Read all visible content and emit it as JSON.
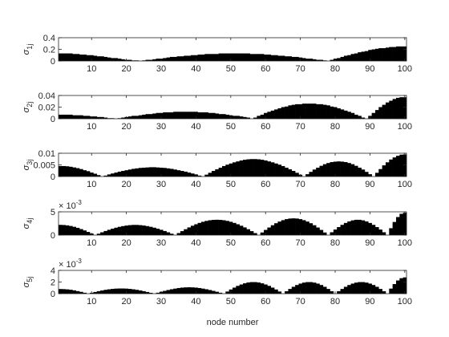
{
  "chart_data": [
    {
      "type": "bar",
      "ylabel_symbol": "σ",
      "ylabel_subscript": "1j",
      "color": "#000000",
      "grid": false,
      "xlim": [
        0.5,
        100.5
      ],
      "xticks": [
        10,
        20,
        30,
        40,
        50,
        60,
        70,
        80,
        90,
        100
      ],
      "ylim": [
        0,
        0.4
      ],
      "yticks": [
        0,
        0.2,
        0.4
      ],
      "values": [
        0.13,
        0.13,
        0.13,
        0.13,
        0.12,
        0.12,
        0.11,
        0.11,
        0.1,
        0.1,
        0.09,
        0.08,
        0.08,
        0.07,
        0.06,
        0.05,
        0.05,
        0.04,
        0.03,
        0.02,
        0.02,
        0.01,
        0.01,
        0.0,
        0.01,
        0.02,
        0.02,
        0.03,
        0.04,
        0.04,
        0.05,
        0.06,
        0.07,
        0.07,
        0.08,
        0.08,
        0.09,
        0.09,
        0.1,
        0.1,
        0.11,
        0.11,
        0.12,
        0.12,
        0.12,
        0.12,
        0.13,
        0.13,
        0.13,
        0.13,
        0.13,
        0.13,
        0.13,
        0.13,
        0.13,
        0.12,
        0.12,
        0.12,
        0.12,
        0.11,
        0.11,
        0.1,
        0.1,
        0.09,
        0.09,
        0.08,
        0.08,
        0.07,
        0.07,
        0.06,
        0.05,
        0.04,
        0.04,
        0.03,
        0.02,
        0.02,
        0.01,
        0.0,
        0.02,
        0.04,
        0.05,
        0.07,
        0.09,
        0.1,
        0.12,
        0.13,
        0.15,
        0.16,
        0.17,
        0.19,
        0.2,
        0.21,
        0.22,
        0.22,
        0.23,
        0.24,
        0.24,
        0.25,
        0.25,
        0.25
      ]
    },
    {
      "type": "bar",
      "ylabel_symbol": "σ",
      "ylabel_subscript": "2j",
      "color": "#000000",
      "grid": false,
      "xlim": [
        0.5,
        100.5
      ],
      "xticks": [
        10,
        20,
        30,
        40,
        50,
        60,
        70,
        80,
        90,
        100
      ],
      "ylim": [
        0,
        0.04
      ],
      "yticks": [
        0,
        0.02,
        0.04
      ],
      "values": [
        0.007,
        0.007,
        0.007,
        0.007,
        0.006,
        0.006,
        0.006,
        0.005,
        0.005,
        0.004,
        0.004,
        0.003,
        0.003,
        0.002,
        0.001,
        0.001,
        0.0,
        0.001,
        0.002,
        0.003,
        0.004,
        0.005,
        0.005,
        0.006,
        0.007,
        0.008,
        0.008,
        0.009,
        0.01,
        0.01,
        0.011,
        0.011,
        0.011,
        0.012,
        0.012,
        0.012,
        0.012,
        0.012,
        0.012,
        0.012,
        0.011,
        0.011,
        0.011,
        0.01,
        0.01,
        0.009,
        0.008,
        0.008,
        0.007,
        0.006,
        0.005,
        0.005,
        0.004,
        0.003,
        0.002,
        0.0,
        0.002,
        0.005,
        0.007,
        0.01,
        0.012,
        0.014,
        0.016,
        0.018,
        0.02,
        0.021,
        0.023,
        0.024,
        0.025,
        0.025,
        0.026,
        0.026,
        0.026,
        0.026,
        0.025,
        0.025,
        0.024,
        0.023,
        0.021,
        0.02,
        0.018,
        0.016,
        0.014,
        0.012,
        0.01,
        0.007,
        0.005,
        0.002,
        0.0,
        0.005,
        0.01,
        0.015,
        0.02,
        0.024,
        0.028,
        0.031,
        0.034,
        0.036,
        0.037,
        0.037
      ]
    },
    {
      "type": "bar",
      "ylabel_symbol": "σ",
      "ylabel_subscript": "3j",
      "color": "#000000",
      "grid": false,
      "xlim": [
        0.5,
        100.5
      ],
      "xticks": [
        10,
        20,
        30,
        40,
        50,
        60,
        70,
        80,
        90,
        100
      ],
      "ylim": [
        0,
        0.01
      ],
      "yticks": [
        0,
        0.005,
        0.01
      ],
      "values": [
        0.0045,
        0.0045,
        0.0044,
        0.0042,
        0.0039,
        0.0036,
        0.0032,
        0.0027,
        0.0023,
        0.0017,
        0.0012,
        0.0006,
        0.0,
        0.0004,
        0.0009,
        0.0013,
        0.0017,
        0.0021,
        0.0024,
        0.0027,
        0.003,
        0.0033,
        0.0035,
        0.0037,
        0.0038,
        0.0039,
        0.004,
        0.004,
        0.0039,
        0.0038,
        0.0037,
        0.0035,
        0.0033,
        0.003,
        0.0027,
        0.0024,
        0.0021,
        0.0017,
        0.0013,
        0.0009,
        0.0004,
        0.0,
        0.0008,
        0.0016,
        0.0024,
        0.0031,
        0.0038,
        0.0045,
        0.0051,
        0.0056,
        0.0061,
        0.0065,
        0.0069,
        0.0072,
        0.0074,
        0.0075,
        0.0075,
        0.0074,
        0.0072,
        0.0069,
        0.0065,
        0.0061,
        0.0056,
        0.0051,
        0.0045,
        0.0038,
        0.0031,
        0.0024,
        0.0016,
        0.0008,
        0.0,
        0.001,
        0.002,
        0.003,
        0.0038,
        0.0046,
        0.0053,
        0.0058,
        0.0062,
        0.0064,
        0.0065,
        0.0064,
        0.0062,
        0.0058,
        0.0053,
        0.0046,
        0.0038,
        0.003,
        0.002,
        0.001,
        0.0,
        0.0016,
        0.0032,
        0.0048,
        0.0061,
        0.0073,
        0.0082,
        0.0089,
        0.0094,
        0.0095
      ]
    },
    {
      "type": "bar",
      "ylabel_symbol": "σ",
      "ylabel_subscript": "4j",
      "y_multiplier": "× 10",
      "y_exponent": "-3",
      "color": "#000000",
      "grid": false,
      "xlim": [
        0.5,
        100.5
      ],
      "xticks": [
        10,
        20,
        30,
        40,
        50,
        60,
        70,
        80,
        90,
        100
      ],
      "ylim": [
        0,
        5
      ],
      "yticks": [
        0,
        5
      ],
      "values": [
        2.2,
        2.17,
        2.09,
        1.96,
        1.78,
        1.56,
        1.29,
        1.0,
        0.68,
        0.34,
        0,
        0.3,
        0.6,
        0.88,
        1.14,
        1.38,
        1.59,
        1.78,
        1.93,
        2.05,
        2.14,
        2.19,
        2.19,
        2.14,
        2.05,
        1.93,
        1.78,
        1.59,
        1.38,
        1.14,
        0.88,
        0.6,
        0.3,
        0,
        0.43,
        0.85,
        1.26,
        1.65,
        2.01,
        2.33,
        2.62,
        2.86,
        3.05,
        3.19,
        3.27,
        3.3,
        3.27,
        3.19,
        3.05,
        2.86,
        2.62,
        2.33,
        2.01,
        1.65,
        1.26,
        0.85,
        0.43,
        0,
        0.56,
        1.11,
        1.63,
        2.12,
        2.55,
        2.91,
        3.21,
        3.43,
        3.56,
        3.6,
        3.56,
        3.43,
        3.21,
        2.91,
        2.55,
        2.12,
        1.63,
        1.11,
        0.56,
        0,
        0.61,
        1.19,
        1.72,
        2.2,
        2.61,
        2.94,
        3.17,
        3.29,
        3.29,
        3.17,
        2.94,
        2.61,
        2.2,
        1.72,
        1.19,
        0.61,
        0,
        1.48,
        2.82,
        3.88,
        4.57,
        4.8
      ]
    },
    {
      "type": "bar",
      "ylabel_symbol": "σ",
      "ylabel_subscript": "5j",
      "y_multiplier": "× 10",
      "y_exponent": "-3",
      "color": "#000000",
      "grid": false,
      "xlabel": "node number",
      "xlim": [
        0.5,
        100.5
      ],
      "xticks": [
        10,
        20,
        30,
        40,
        50,
        60,
        70,
        80,
        90,
        100
      ],
      "ylim": [
        0,
        4
      ],
      "yticks": [
        0,
        2,
        4
      ],
      "values": [
        0.8,
        0.78,
        0.74,
        0.67,
        0.57,
        0.44,
        0.31,
        0.16,
        0,
        0.15,
        0.29,
        0.43,
        0.55,
        0.66,
        0.75,
        0.82,
        0.87,
        0.89,
        0.89,
        0.87,
        0.82,
        0.75,
        0.66,
        0.55,
        0.43,
        0.29,
        0.15,
        0,
        0.16,
        0.33,
        0.48,
        0.63,
        0.76,
        0.87,
        0.97,
        1.04,
        1.08,
        1.1,
        1.08,
        1.04,
        0.97,
        0.87,
        0.76,
        0.63,
        0.48,
        0.33,
        0.16,
        0,
        0.37,
        0.72,
        1.04,
        1.34,
        1.58,
        1.78,
        1.92,
        1.99,
        1.99,
        1.92,
        1.78,
        1.58,
        1.34,
        1.04,
        0.72,
        0.37,
        0,
        0.42,
        0.81,
        1.18,
        1.49,
        1.73,
        1.9,
        1.99,
        1.99,
        1.9,
        1.73,
        1.49,
        1.18,
        0.81,
        0.42,
        0,
        0.42,
        0.81,
        1.18,
        1.49,
        1.73,
        1.9,
        1.99,
        1.99,
        1.9,
        1.73,
        1.49,
        1.18,
        0.81,
        0.42,
        0,
        0.87,
        1.65,
        2.27,
        2.66,
        2.8
      ]
    }
  ]
}
